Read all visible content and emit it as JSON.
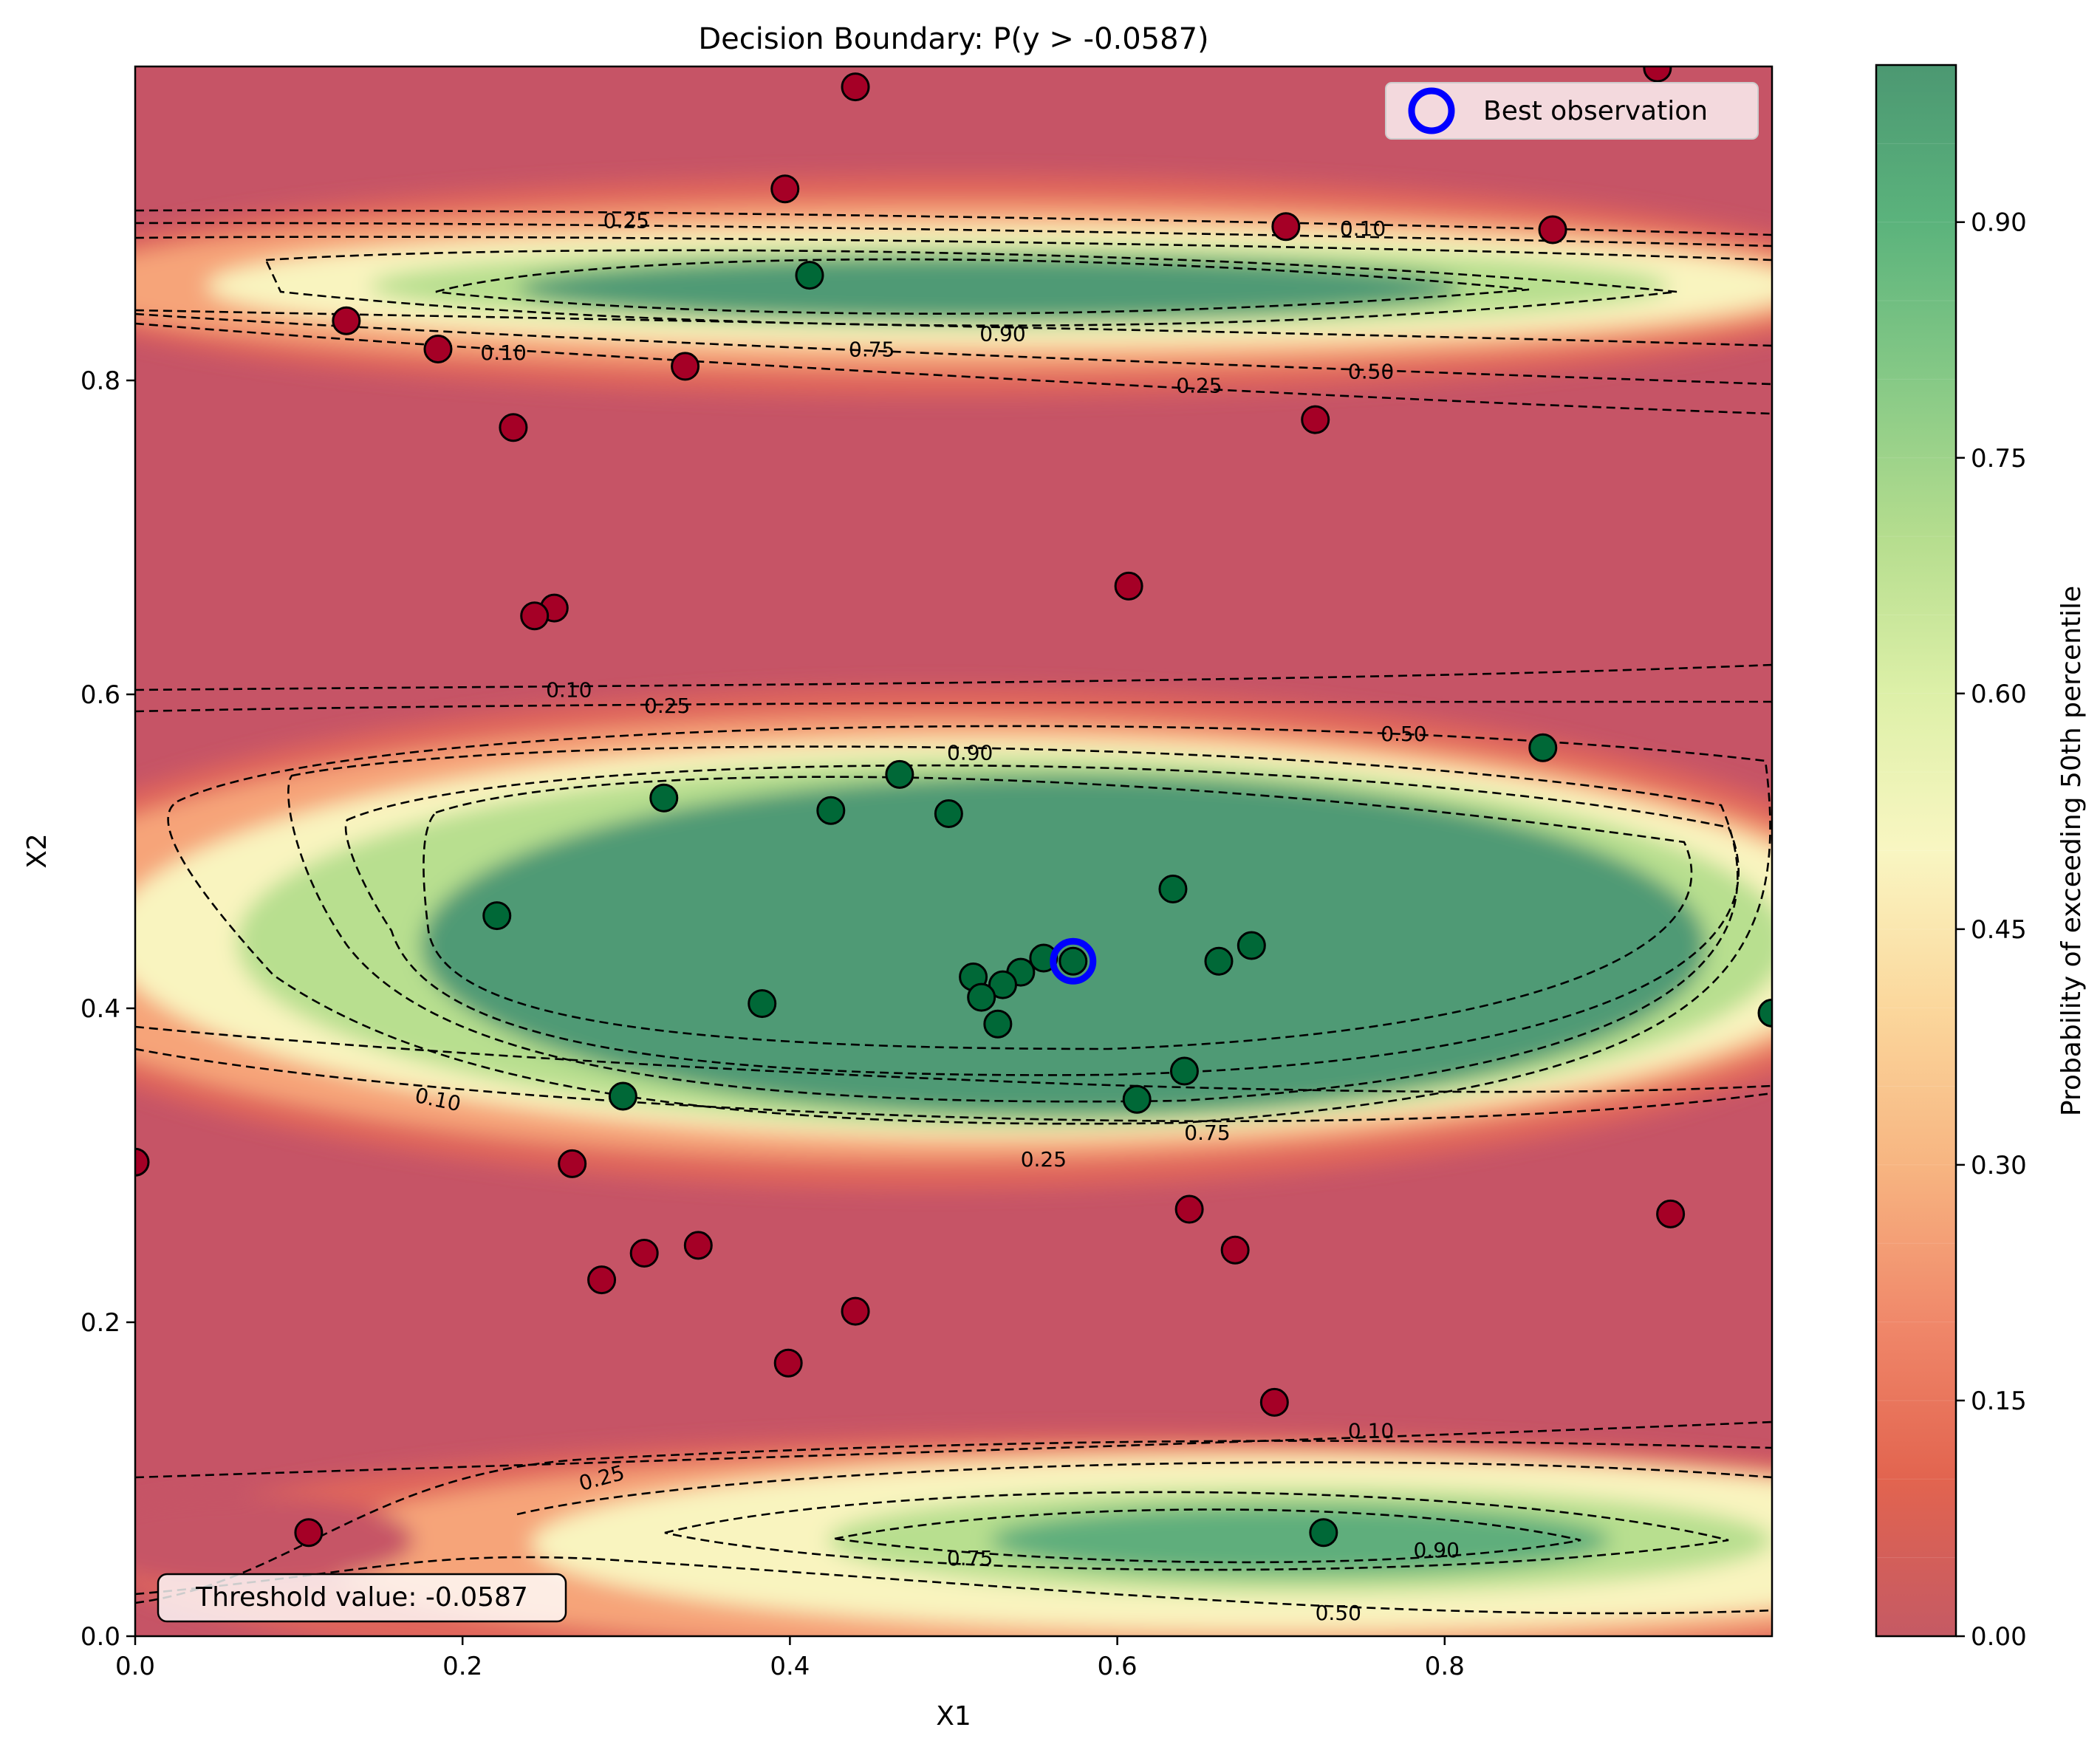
{
  "chart_data": {
    "type": "contour",
    "title": "Decision Boundary: P(y > -0.0587)",
    "xlabel": "X1",
    "ylabel": "X2",
    "xlim": [
      0,
      1
    ],
    "ylim": [
      0,
      1
    ],
    "xticks": [
      "0.0",
      "0.2",
      "0.4",
      "0.6",
      "0.8"
    ],
    "xtick_values": [
      0,
      0.2,
      0.4,
      0.6,
      0.8
    ],
    "yticks": [
      "0.0",
      "0.2",
      "0.4",
      "0.6",
      "0.8"
    ],
    "ytick_values": [
      0,
      0.2,
      0.4,
      0.6,
      0.8
    ],
    "grid": false,
    "legend": {
      "placement": "top-right",
      "entries": [
        "Best observation"
      ]
    },
    "annotation": "Threshold value: -0.0587",
    "colorbar": {
      "label": "Probability of exceeding 50th percentile",
      "range": [
        0,
        1
      ],
      "ticks": [
        "0.00",
        "0.15",
        "0.30",
        "0.45",
        "0.60",
        "0.75",
        "0.90"
      ],
      "tick_values": [
        0,
        0.15,
        0.3,
        0.45,
        0.6,
        0.75,
        0.9
      ],
      "colormap": "RdYlGn"
    },
    "contour_levels": [
      0.1,
      0.25,
      0.5,
      0.75,
      0.9
    ],
    "contour_labels": [
      {
        "text": "0.25",
        "x": 0.3,
        "y": 0.902
      },
      {
        "text": "0.10",
        "x": 0.75,
        "y": 0.897
      },
      {
        "text": "0.10",
        "x": 0.225,
        "y": 0.818
      },
      {
        "text": "0.75",
        "x": 0.45,
        "y": 0.82
      },
      {
        "text": "0.90",
        "x": 0.53,
        "y": 0.83
      },
      {
        "text": "0.25",
        "x": 0.65,
        "y": 0.797
      },
      {
        "text": "0.50",
        "x": 0.755,
        "y": 0.806
      },
      {
        "text": "0.10",
        "x": 0.265,
        "y": 0.603
      },
      {
        "text": "0.25",
        "x": 0.325,
        "y": 0.593
      },
      {
        "text": "0.50",
        "x": 0.775,
        "y": 0.575
      },
      {
        "text": "0.90",
        "x": 0.51,
        "y": 0.563
      },
      {
        "text": "0.10",
        "x": 0.185,
        "y": 0.342,
        "rotate": 12
      },
      {
        "text": "0.75",
        "x": 0.655,
        "y": 0.321
      },
      {
        "text": "0.25",
        "x": 0.555,
        "y": 0.304
      },
      {
        "text": "0.10",
        "x": 0.755,
        "y": 0.131
      },
      {
        "text": "0.25",
        "x": 0.285,
        "y": 0.101,
        "rotate": -15
      },
      {
        "text": "0.75",
        "x": 0.51,
        "y": 0.05
      },
      {
        "text": "0.90",
        "x": 0.795,
        "y": 0.055
      },
      {
        "text": "0.50",
        "x": 0.735,
        "y": 0.015
      }
    ],
    "series": [
      {
        "class": "low",
        "color": "#a50026",
        "points": [
          [
            0.44,
            0.987
          ],
          [
            0.93,
            0.999
          ],
          [
            0.397,
            0.922
          ],
          [
            0.703,
            0.898
          ],
          [
            0.866,
            0.896
          ],
          [
            0.129,
            0.838
          ],
          [
            0.185,
            0.82
          ],
          [
            0.336,
            0.809
          ],
          [
            0.231,
            0.77
          ],
          [
            0.721,
            0.775
          ],
          [
            0.607,
            0.669
          ],
          [
            0.256,
            0.655
          ],
          [
            0.244,
            0.65
          ],
          [
            0.0,
            0.302
          ],
          [
            0.267,
            0.301
          ],
          [
            0.644,
            0.272
          ],
          [
            0.672,
            0.246
          ],
          [
            0.938,
            0.269
          ],
          [
            0.344,
            0.249
          ],
          [
            0.311,
            0.244
          ],
          [
            0.285,
            0.227
          ],
          [
            0.44,
            0.207
          ],
          [
            0.399,
            0.174
          ],
          [
            0.696,
            0.149
          ],
          [
            0.106,
            0.066
          ]
        ]
      },
      {
        "class": "high",
        "color": "#006837",
        "points": [
          [
            0.412,
            0.867
          ],
          [
            0.86,
            0.566
          ],
          [
            0.323,
            0.534
          ],
          [
            0.467,
            0.549
          ],
          [
            0.425,
            0.526
          ],
          [
            0.497,
            0.524
          ],
          [
            0.634,
            0.476
          ],
          [
            0.221,
            0.459
          ],
          [
            0.682,
            0.44
          ],
          [
            0.662,
            0.43
          ],
          [
            0.573,
            0.43
          ],
          [
            0.555,
            0.432
          ],
          [
            0.541,
            0.423
          ],
          [
            0.53,
            0.415
          ],
          [
            0.512,
            0.42
          ],
          [
            0.517,
            0.407
          ],
          [
            0.527,
            0.39
          ],
          [
            0.383,
            0.403
          ],
          [
            1.0,
            0.397
          ],
          [
            0.641,
            0.36
          ],
          [
            0.612,
            0.342
          ],
          [
            0.298,
            0.344
          ],
          [
            0.726,
            0.066
          ]
        ]
      }
    ],
    "best_observation": {
      "x": 0.573,
      "y": 0.43,
      "color": "#0000ff"
    }
  }
}
